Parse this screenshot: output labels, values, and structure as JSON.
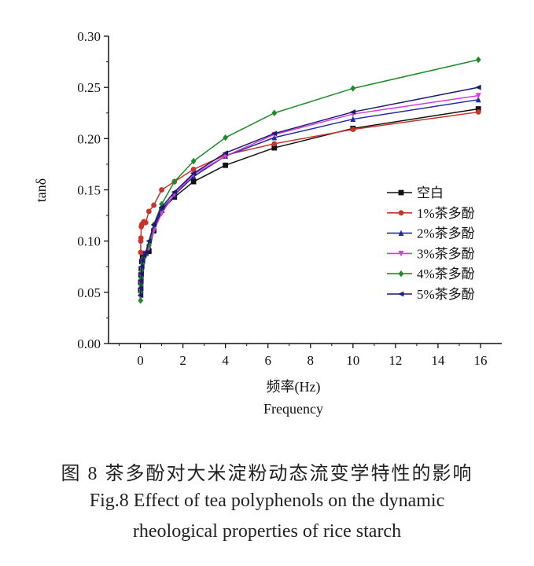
{
  "chart_data": {
    "type": "line",
    "ylabel": "tanδ",
    "xlabel_cn": "频率(Hz)",
    "xlabel_en": "Frequency",
    "xlim": [
      -1.5,
      17
    ],
    "ylim": [
      0,
      0.3
    ],
    "xticks": [
      0,
      2,
      4,
      6,
      8,
      10,
      12,
      14,
      16
    ],
    "yticks": [
      "0.00",
      "0.05",
      "0.10",
      "0.15",
      "0.20",
      "0.25",
      "0.30"
    ],
    "legend_position": "right-center",
    "series": [
      {
        "name": "空白",
        "color": "#111111",
        "marker": "square",
        "points": [
          [
            0.01,
            0.052
          ],
          [
            0.016,
            0.06
          ],
          [
            0.025,
            0.067
          ],
          [
            0.04,
            0.073
          ],
          [
            0.063,
            0.08
          ],
          [
            0.1,
            0.084
          ],
          [
            0.16,
            0.087
          ],
          [
            0.25,
            0.088
          ],
          [
            0.4,
            0.09
          ],
          [
            0.63,
            0.11
          ],
          [
            1.0,
            0.13
          ],
          [
            1.6,
            0.143
          ],
          [
            2.5,
            0.158
          ],
          [
            4.0,
            0.174
          ],
          [
            6.3,
            0.191
          ],
          [
            10.0,
            0.21
          ],
          [
            15.9,
            0.229
          ]
        ]
      },
      {
        "name": "1%茶多酚",
        "color": "#c8352b",
        "marker": "circle",
        "points": [
          [
            0.01,
            0.089
          ],
          [
            0.016,
            0.1
          ],
          [
            0.025,
            0.103
          ],
          [
            0.04,
            0.114
          ],
          [
            0.063,
            0.116
          ],
          [
            0.1,
            0.117
          ],
          [
            0.16,
            0.119
          ],
          [
            0.25,
            0.118
          ],
          [
            0.4,
            0.129
          ],
          [
            0.63,
            0.135
          ],
          [
            1.0,
            0.15
          ],
          [
            1.6,
            0.158
          ],
          [
            2.5,
            0.17
          ],
          [
            4.0,
            0.184
          ],
          [
            6.3,
            0.195
          ],
          [
            10.0,
            0.209
          ],
          [
            15.9,
            0.226
          ]
        ]
      },
      {
        "name": "2%茶多酚",
        "color": "#1e2aa8",
        "marker": "triangle-up",
        "points": [
          [
            0.01,
            0.049
          ],
          [
            0.016,
            0.056
          ],
          [
            0.025,
            0.063
          ],
          [
            0.04,
            0.07
          ],
          [
            0.063,
            0.076
          ],
          [
            0.1,
            0.082
          ],
          [
            0.16,
            0.086
          ],
          [
            0.25,
            0.088
          ],
          [
            0.4,
            0.095
          ],
          [
            0.63,
            0.113
          ],
          [
            1.0,
            0.131
          ],
          [
            1.6,
            0.145
          ],
          [
            2.5,
            0.163
          ],
          [
            4.0,
            0.183
          ],
          [
            6.3,
            0.201
          ],
          [
            10.0,
            0.219
          ],
          [
            15.9,
            0.238
          ]
        ]
      },
      {
        "name": "3%茶多酚",
        "color": "#d83bd8",
        "marker": "triangle-down",
        "points": [
          [
            0.01,
            0.045
          ],
          [
            0.016,
            0.052
          ],
          [
            0.025,
            0.059
          ],
          [
            0.04,
            0.066
          ],
          [
            0.063,
            0.073
          ],
          [
            0.1,
            0.08
          ],
          [
            0.16,
            0.085
          ],
          [
            0.25,
            0.088
          ],
          [
            0.4,
            0.093
          ],
          [
            0.63,
            0.11
          ],
          [
            1.0,
            0.127
          ],
          [
            1.6,
            0.146
          ],
          [
            2.5,
            0.165
          ],
          [
            4.0,
            0.183
          ],
          [
            6.3,
            0.204
          ],
          [
            10.0,
            0.224
          ],
          [
            15.9,
            0.242
          ]
        ]
      },
      {
        "name": "4%茶多酚",
        "color": "#1f8a2a",
        "marker": "diamond",
        "points": [
          [
            0.01,
            0.042
          ],
          [
            0.016,
            0.05
          ],
          [
            0.025,
            0.057
          ],
          [
            0.04,
            0.064
          ],
          [
            0.063,
            0.071
          ],
          [
            0.1,
            0.078
          ],
          [
            0.16,
            0.084
          ],
          [
            0.25,
            0.087
          ],
          [
            0.4,
            0.096
          ],
          [
            0.63,
            0.116
          ],
          [
            1.0,
            0.136
          ],
          [
            1.6,
            0.158
          ],
          [
            2.5,
            0.178
          ],
          [
            4.0,
            0.201
          ],
          [
            6.3,
            0.225
          ],
          [
            10.0,
            0.249
          ],
          [
            15.9,
            0.277
          ]
        ]
      },
      {
        "name": "5%茶多酚",
        "color": "#1b1b6e",
        "marker": "triangle-left",
        "points": [
          [
            0.01,
            0.047
          ],
          [
            0.016,
            0.054
          ],
          [
            0.025,
            0.061
          ],
          [
            0.04,
            0.068
          ],
          [
            0.063,
            0.075
          ],
          [
            0.1,
            0.081
          ],
          [
            0.16,
            0.086
          ],
          [
            0.25,
            0.089
          ],
          [
            0.4,
            0.1
          ],
          [
            0.63,
            0.116
          ],
          [
            1.0,
            0.133
          ],
          [
            1.6,
            0.148
          ],
          [
            2.5,
            0.166
          ],
          [
            4.0,
            0.186
          ],
          [
            6.3,
            0.205
          ],
          [
            10.0,
            0.226
          ],
          [
            15.9,
            0.25
          ]
        ]
      }
    ]
  },
  "caption": {
    "cn": "图 8  茶多酚对大米淀粉动态流变学特性的影响",
    "en_line1": "Fig.8 Effect of tea polyphenols on the dynamic",
    "en_line2": "rheological properties of rice starch"
  }
}
